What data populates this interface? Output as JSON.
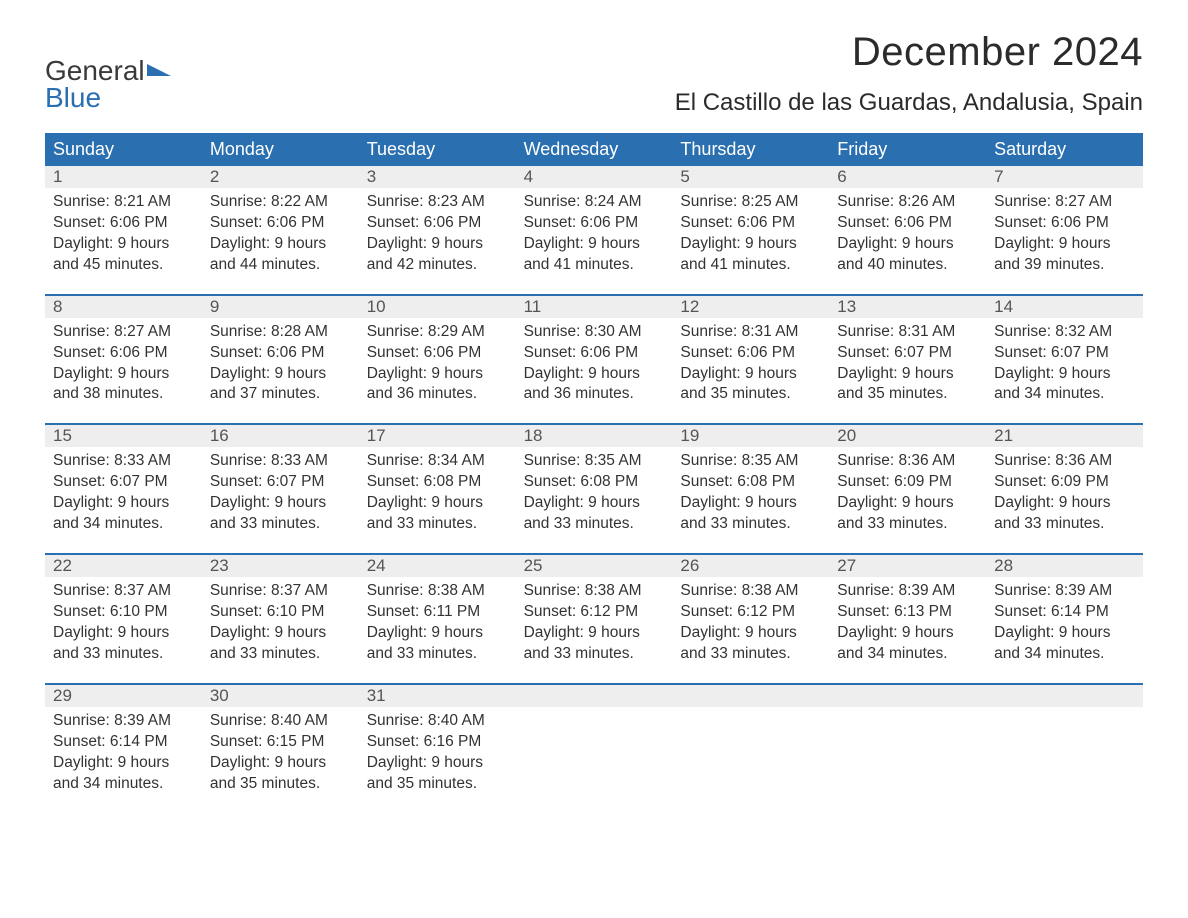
{
  "branding": {
    "logo_word1": "General",
    "logo_word2": "Blue",
    "logo_word1_color": "#3a3a3a",
    "logo_word2_color": "#2a6fb0",
    "flag_color": "#2a6fb0"
  },
  "header": {
    "month_title": "December 2024",
    "location": "El Castillo de las Guardas, Andalusia, Spain"
  },
  "styling": {
    "header_bg": "#2a6fb0",
    "header_text": "#ffffff",
    "daynum_bg": "#eeeeee",
    "daynum_color": "#555555",
    "body_text": "#333333",
    "week_border": "#2a6fb0",
    "page_bg": "#ffffff",
    "title_fontsize": 40,
    "location_fontsize": 24,
    "header_fontsize": 18,
    "body_fontsize": 15.5
  },
  "calendar": {
    "type": "table",
    "columns": [
      "Sunday",
      "Monday",
      "Tuesday",
      "Wednesday",
      "Thursday",
      "Friday",
      "Saturday"
    ],
    "weeks": [
      {
        "nums": [
          "1",
          "2",
          "3",
          "4",
          "5",
          "6",
          "7"
        ],
        "cells": [
          {
            "sunrise": "Sunrise: 8:21 AM",
            "sunset": "Sunset: 6:06 PM",
            "dl1": "Daylight: 9 hours",
            "dl2": "and 45 minutes."
          },
          {
            "sunrise": "Sunrise: 8:22 AM",
            "sunset": "Sunset: 6:06 PM",
            "dl1": "Daylight: 9 hours",
            "dl2": "and 44 minutes."
          },
          {
            "sunrise": "Sunrise: 8:23 AM",
            "sunset": "Sunset: 6:06 PM",
            "dl1": "Daylight: 9 hours",
            "dl2": "and 42 minutes."
          },
          {
            "sunrise": "Sunrise: 8:24 AM",
            "sunset": "Sunset: 6:06 PM",
            "dl1": "Daylight: 9 hours",
            "dl2": "and 41 minutes."
          },
          {
            "sunrise": "Sunrise: 8:25 AM",
            "sunset": "Sunset: 6:06 PM",
            "dl1": "Daylight: 9 hours",
            "dl2": "and 41 minutes."
          },
          {
            "sunrise": "Sunrise: 8:26 AM",
            "sunset": "Sunset: 6:06 PM",
            "dl1": "Daylight: 9 hours",
            "dl2": "and 40 minutes."
          },
          {
            "sunrise": "Sunrise: 8:27 AM",
            "sunset": "Sunset: 6:06 PM",
            "dl1": "Daylight: 9 hours",
            "dl2": "and 39 minutes."
          }
        ]
      },
      {
        "nums": [
          "8",
          "9",
          "10",
          "11",
          "12",
          "13",
          "14"
        ],
        "cells": [
          {
            "sunrise": "Sunrise: 8:27 AM",
            "sunset": "Sunset: 6:06 PM",
            "dl1": "Daylight: 9 hours",
            "dl2": "and 38 minutes."
          },
          {
            "sunrise": "Sunrise: 8:28 AM",
            "sunset": "Sunset: 6:06 PM",
            "dl1": "Daylight: 9 hours",
            "dl2": "and 37 minutes."
          },
          {
            "sunrise": "Sunrise: 8:29 AM",
            "sunset": "Sunset: 6:06 PM",
            "dl1": "Daylight: 9 hours",
            "dl2": "and 36 minutes."
          },
          {
            "sunrise": "Sunrise: 8:30 AM",
            "sunset": "Sunset: 6:06 PM",
            "dl1": "Daylight: 9 hours",
            "dl2": "and 36 minutes."
          },
          {
            "sunrise": "Sunrise: 8:31 AM",
            "sunset": "Sunset: 6:06 PM",
            "dl1": "Daylight: 9 hours",
            "dl2": "and 35 minutes."
          },
          {
            "sunrise": "Sunrise: 8:31 AM",
            "sunset": "Sunset: 6:07 PM",
            "dl1": "Daylight: 9 hours",
            "dl2": "and 35 minutes."
          },
          {
            "sunrise": "Sunrise: 8:32 AM",
            "sunset": "Sunset: 6:07 PM",
            "dl1": "Daylight: 9 hours",
            "dl2": "and 34 minutes."
          }
        ]
      },
      {
        "nums": [
          "15",
          "16",
          "17",
          "18",
          "19",
          "20",
          "21"
        ],
        "cells": [
          {
            "sunrise": "Sunrise: 8:33 AM",
            "sunset": "Sunset: 6:07 PM",
            "dl1": "Daylight: 9 hours",
            "dl2": "and 34 minutes."
          },
          {
            "sunrise": "Sunrise: 8:33 AM",
            "sunset": "Sunset: 6:07 PM",
            "dl1": "Daylight: 9 hours",
            "dl2": "and 33 minutes."
          },
          {
            "sunrise": "Sunrise: 8:34 AM",
            "sunset": "Sunset: 6:08 PM",
            "dl1": "Daylight: 9 hours",
            "dl2": "and 33 minutes."
          },
          {
            "sunrise": "Sunrise: 8:35 AM",
            "sunset": "Sunset: 6:08 PM",
            "dl1": "Daylight: 9 hours",
            "dl2": "and 33 minutes."
          },
          {
            "sunrise": "Sunrise: 8:35 AM",
            "sunset": "Sunset: 6:08 PM",
            "dl1": "Daylight: 9 hours",
            "dl2": "and 33 minutes."
          },
          {
            "sunrise": "Sunrise: 8:36 AM",
            "sunset": "Sunset: 6:09 PM",
            "dl1": "Daylight: 9 hours",
            "dl2": "and 33 minutes."
          },
          {
            "sunrise": "Sunrise: 8:36 AM",
            "sunset": "Sunset: 6:09 PM",
            "dl1": "Daylight: 9 hours",
            "dl2": "and 33 minutes."
          }
        ]
      },
      {
        "nums": [
          "22",
          "23",
          "24",
          "25",
          "26",
          "27",
          "28"
        ],
        "cells": [
          {
            "sunrise": "Sunrise: 8:37 AM",
            "sunset": "Sunset: 6:10 PM",
            "dl1": "Daylight: 9 hours",
            "dl2": "and 33 minutes."
          },
          {
            "sunrise": "Sunrise: 8:37 AM",
            "sunset": "Sunset: 6:10 PM",
            "dl1": "Daylight: 9 hours",
            "dl2": "and 33 minutes."
          },
          {
            "sunrise": "Sunrise: 8:38 AM",
            "sunset": "Sunset: 6:11 PM",
            "dl1": "Daylight: 9 hours",
            "dl2": "and 33 minutes."
          },
          {
            "sunrise": "Sunrise: 8:38 AM",
            "sunset": "Sunset: 6:12 PM",
            "dl1": "Daylight: 9 hours",
            "dl2": "and 33 minutes."
          },
          {
            "sunrise": "Sunrise: 8:38 AM",
            "sunset": "Sunset: 6:12 PM",
            "dl1": "Daylight: 9 hours",
            "dl2": "and 33 minutes."
          },
          {
            "sunrise": "Sunrise: 8:39 AM",
            "sunset": "Sunset: 6:13 PM",
            "dl1": "Daylight: 9 hours",
            "dl2": "and 34 minutes."
          },
          {
            "sunrise": "Sunrise: 8:39 AM",
            "sunset": "Sunset: 6:14 PM",
            "dl1": "Daylight: 9 hours",
            "dl2": "and 34 minutes."
          }
        ]
      },
      {
        "nums": [
          "29",
          "30",
          "31",
          "",
          "",
          "",
          ""
        ],
        "cells": [
          {
            "sunrise": "Sunrise: 8:39 AM",
            "sunset": "Sunset: 6:14 PM",
            "dl1": "Daylight: 9 hours",
            "dl2": "and 34 minutes."
          },
          {
            "sunrise": "Sunrise: 8:40 AM",
            "sunset": "Sunset: 6:15 PM",
            "dl1": "Daylight: 9 hours",
            "dl2": "and 35 minutes."
          },
          {
            "sunrise": "Sunrise: 8:40 AM",
            "sunset": "Sunset: 6:16 PM",
            "dl1": "Daylight: 9 hours",
            "dl2": "and 35 minutes."
          },
          {
            "sunrise": "",
            "sunset": "",
            "dl1": "",
            "dl2": ""
          },
          {
            "sunrise": "",
            "sunset": "",
            "dl1": "",
            "dl2": ""
          },
          {
            "sunrise": "",
            "sunset": "",
            "dl1": "",
            "dl2": ""
          },
          {
            "sunrise": "",
            "sunset": "",
            "dl1": "",
            "dl2": ""
          }
        ]
      }
    ]
  }
}
